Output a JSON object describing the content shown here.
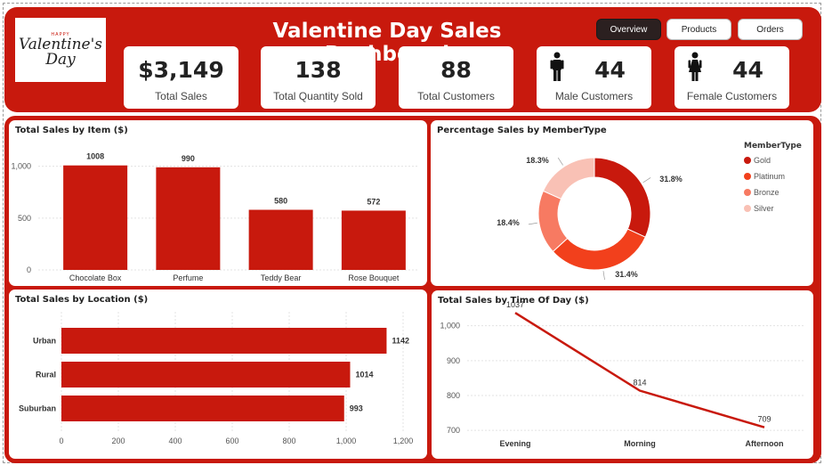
{
  "header": {
    "title": "Valentine Day Sales Dashboard",
    "logo": {
      "line1": "HAPPY",
      "line2": "Valentine's",
      "line3": "Day"
    },
    "nav": [
      {
        "label": "Overview",
        "active": true
      },
      {
        "label": "Products",
        "active": false
      },
      {
        "label": "Orders",
        "active": false
      }
    ]
  },
  "kpis": [
    {
      "value": "$3,149",
      "label": "Total Sales",
      "icon": ""
    },
    {
      "value": "138",
      "label": "Total Quantity Sold",
      "icon": ""
    },
    {
      "value": "88",
      "label": "Total Customers",
      "icon": ""
    },
    {
      "value": "44",
      "label": "Male Customers",
      "icon": "male-person-icon"
    },
    {
      "value": "44",
      "label": "Female Customers",
      "icon": "female-person-icon"
    }
  ],
  "colors": {
    "brand": "#c8190d",
    "gold": "#c8190d",
    "platinum": "#f2401c",
    "bronze": "#f77a62",
    "silver": "#f9c1b5",
    "nav_active": "#2b2020"
  },
  "charts": {
    "item": {
      "title": "Total Sales by Item ($)",
      "chart_data": {
        "type": "bar",
        "categories": [
          "Chocolate Box",
          "Perfume",
          "Teddy Bear",
          "Rose Bouquet"
        ],
        "values": [
          1008,
          990,
          580,
          572
        ],
        "value_labels": [
          "1008",
          "990",
          "580",
          "572"
        ],
        "yticks": [
          0,
          500,
          1000
        ],
        "ytick_labels": [
          "0",
          "500",
          "1,000"
        ],
        "ylim": [
          0,
          1100
        ]
      }
    },
    "member": {
      "title": "Percentage Sales by MemberType",
      "legend_title": "MemberType",
      "chart_data": {
        "type": "pie",
        "categories": [
          "Gold",
          "Platinum",
          "Bronze",
          "Silver"
        ],
        "values": [
          31.8,
          31.4,
          18.4,
          18.3
        ],
        "value_labels": [
          "31.8%",
          "31.4%",
          "18.4%",
          "18.3%"
        ],
        "colors": [
          "#c8190d",
          "#f2401c",
          "#f77a62",
          "#f9c1b5"
        ],
        "legend_position": "right"
      }
    },
    "location": {
      "title": "Total Sales by Location ($)",
      "chart_data": {
        "type": "bar",
        "orientation": "horizontal",
        "categories": [
          "Urban",
          "Rural",
          "Suburban"
        ],
        "values": [
          1142,
          1014,
          993
        ],
        "value_labels": [
          "1142",
          "1014",
          "993"
        ],
        "xticks": [
          0,
          200,
          400,
          600,
          800,
          1000,
          1200
        ],
        "xtick_labels": [
          "0",
          "200",
          "400",
          "600",
          "800",
          "1,000",
          "1,200"
        ],
        "xlim": [
          0,
          1200
        ]
      }
    },
    "time": {
      "title": "Total Sales by Time Of Day ($)",
      "chart_data": {
        "type": "line",
        "categories": [
          "Evening",
          "Morning",
          "Afternoon"
        ],
        "values": [
          1037,
          814,
          709
        ],
        "value_labels": [
          "1037",
          "814",
          "709"
        ],
        "yticks": [
          700,
          800,
          900,
          1000
        ],
        "ytick_labels": [
          "700",
          "800",
          "900",
          "1,000"
        ],
        "ylim": [
          680,
          1040
        ]
      }
    }
  }
}
